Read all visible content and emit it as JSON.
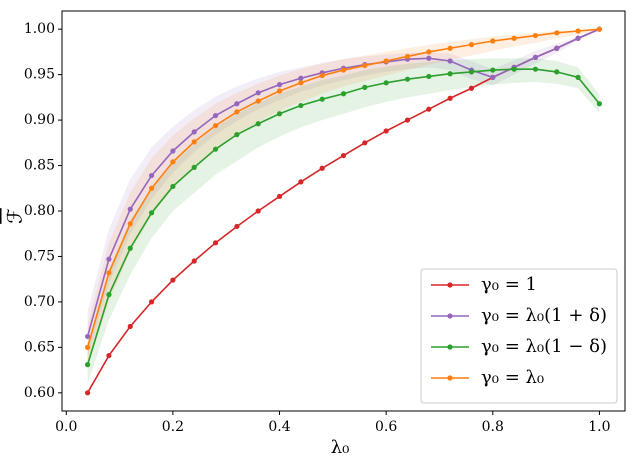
{
  "chart_data": {
    "type": "line",
    "xlabel": "λ₀",
    "ylabel": "ℱ",
    "x": [
      0.04,
      0.08,
      0.12,
      0.16,
      0.2,
      0.24,
      0.28,
      0.32,
      0.36,
      0.4,
      0.44,
      0.48,
      0.52,
      0.56,
      0.6,
      0.64,
      0.68,
      0.72,
      0.76,
      0.8,
      0.84,
      0.88,
      0.92,
      0.96,
      1.0
    ],
    "xlim": [
      -0.008,
      1.048
    ],
    "xticks": [
      {
        "value": 0,
        "label": "0.0"
      },
      0.2,
      0.4,
      0.6,
      0.8,
      {
        "value": 1,
        "label": "1.0"
      }
    ],
    "ylim": [
      0.58,
      1.02
    ],
    "yticks": [
      {
        "value": 0.6,
        "label": "0.60"
      },
      0.65,
      {
        "value": 0.7,
        "label": "0.70"
      },
      0.75,
      {
        "value": 0.8,
        "label": "0.80"
      },
      0.85,
      {
        "value": 0.9,
        "label": "0.90"
      },
      0.95,
      {
        "value": 1,
        "label": "1.00"
      }
    ],
    "legend": "lower right",
    "series": [
      {
        "name": "γ₀ = 1",
        "color": "#d62728",
        "values": [
          0.6,
          0.641,
          0.673,
          0.7,
          0.724,
          0.745,
          0.765,
          0.783,
          0.8,
          0.816,
          0.832,
          0.847,
          0.861,
          0.875,
          0.888,
          0.9,
          0.912,
          0.924,
          0.935,
          0.947,
          0.958,
          0.969,
          0.979,
          0.99,
          1.0
        ]
      },
      {
        "name": "γ₀ = λ₀(1 + δ)",
        "color": "#9467bd",
        "values": [
          0.662,
          0.747,
          0.802,
          0.839,
          0.866,
          0.887,
          0.905,
          0.918,
          0.93,
          0.939,
          0.946,
          0.952,
          0.957,
          0.961,
          0.964,
          0.967,
          0.968,
          0.965,
          0.955,
          0.947,
          0.958,
          0.969,
          0.979,
          0.99,
          1.0
        ],
        "lower": [
          0.64,
          0.72,
          0.775,
          0.813,
          0.842,
          0.865,
          0.884,
          0.899,
          0.912,
          0.922,
          0.931,
          0.938,
          0.944,
          0.949,
          0.953,
          0.956,
          0.958,
          0.955,
          0.945,
          0.938,
          0.95,
          0.962,
          0.974,
          0.987,
          1.0
        ],
        "upper": [
          0.69,
          0.78,
          0.835,
          0.87,
          0.893,
          0.911,
          0.926,
          0.937,
          0.946,
          0.953,
          0.958,
          0.963,
          0.967,
          0.97,
          0.972,
          0.974,
          0.975,
          0.973,
          0.965,
          0.956,
          0.966,
          0.976,
          0.984,
          0.992,
          1.0
        ]
      },
      {
        "name": "γ₀ = λ₀(1 − δ)",
        "color": "#2ca02c",
        "values": [
          0.631,
          0.708,
          0.759,
          0.798,
          0.827,
          0.848,
          0.868,
          0.884,
          0.896,
          0.907,
          0.916,
          0.923,
          0.929,
          0.936,
          0.941,
          0.945,
          0.948,
          0.951,
          0.953,
          0.955,
          0.956,
          0.956,
          0.953,
          0.947,
          0.918
        ],
        "lower": [
          0.61,
          0.68,
          0.73,
          0.77,
          0.8,
          0.82,
          0.84,
          0.855,
          0.87,
          0.882,
          0.892,
          0.9,
          0.907,
          0.914,
          0.92,
          0.925,
          0.929,
          0.933,
          0.936,
          0.939,
          0.941,
          0.942,
          0.94,
          0.935,
          0.908
        ],
        "upper": [
          0.65,
          0.735,
          0.79,
          0.826,
          0.853,
          0.873,
          0.892,
          0.907,
          0.919,
          0.929,
          0.937,
          0.944,
          0.949,
          0.955,
          0.959,
          0.962,
          0.964,
          0.966,
          0.967,
          0.968,
          0.968,
          0.968,
          0.965,
          0.958,
          0.928
        ]
      },
      {
        "name": "γ₀ = λ₀",
        "color": "#ff7f0e",
        "values": [
          0.65,
          0.732,
          0.786,
          0.825,
          0.854,
          0.876,
          0.894,
          0.909,
          0.921,
          0.932,
          0.941,
          0.949,
          0.955,
          0.96,
          0.965,
          0.97,
          0.975,
          0.979,
          0.983,
          0.987,
          0.99,
          0.993,
          0.996,
          0.998,
          1.0
        ],
        "lower": [
          0.63,
          0.7,
          0.755,
          0.795,
          0.825,
          0.848,
          0.868,
          0.885,
          0.898,
          0.91,
          0.92,
          0.929,
          0.937,
          0.943,
          0.949,
          0.955,
          0.961,
          0.966,
          0.971,
          0.976,
          0.981,
          0.985,
          0.99,
          0.994,
          0.998
        ],
        "upper": [
          0.675,
          0.765,
          0.82,
          0.858,
          0.883,
          0.902,
          0.918,
          0.93,
          0.94,
          0.949,
          0.956,
          0.962,
          0.967,
          0.971,
          0.975,
          0.979,
          0.983,
          0.986,
          0.989,
          0.992,
          0.994,
          0.996,
          0.998,
          0.999,
          1.0
        ]
      }
    ]
  }
}
